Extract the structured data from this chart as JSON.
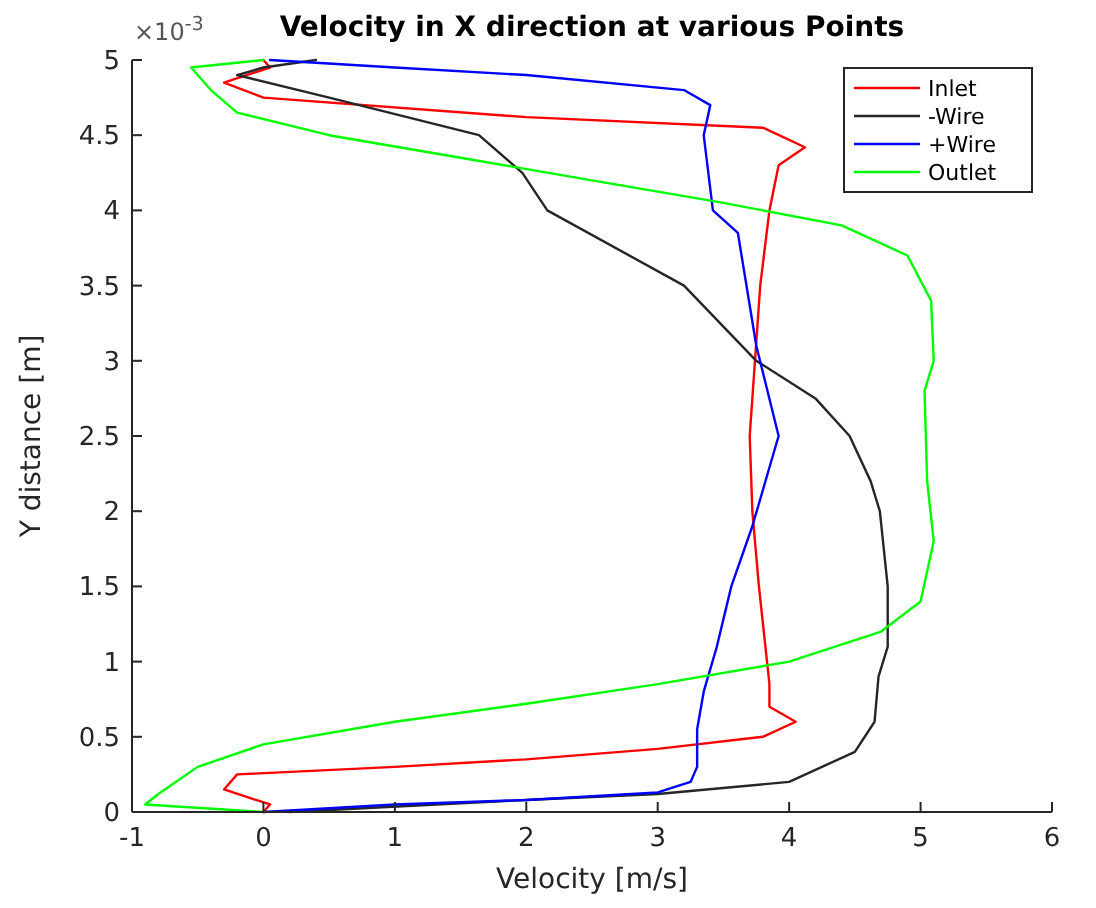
{
  "chart_data": {
    "type": "line",
    "title": "Velocity in X direction at various Points",
    "xlabel": "Velocity [m/s]",
    "ylabel": "Y distance [m]",
    "annotations": [
      "×10$^{-3}$"
    ],
    "xlim": [
      -1,
      6
    ],
    "xticks": [
      -1,
      0,
      1,
      2,
      3,
      4,
      5,
      6
    ],
    "ylim": [
      0,
      5
    ],
    "yticks": [
      0,
      0.5,
      1,
      1.5,
      2,
      2.5,
      3,
      3.5,
      4,
      4.5,
      5
    ],
    "grid": false,
    "legend": "top right",
    "line_style": "solid",
    "series": [
      {
        "name": "Inlet",
        "color": "#ff0000",
        "x": [
          0,
          0.05,
          -0.3,
          -0.2,
          1,
          2,
          3,
          3.8,
          4.05,
          3.85,
          3.85,
          3.77,
          3.72,
          3.7,
          3.74,
          3.78,
          3.85,
          3.92,
          4.12,
          3.8,
          2,
          0,
          -0.3,
          0.05,
          0
        ],
        "values": [
          0,
          0.05,
          0.15,
          0.25,
          0.3,
          0.35,
          0.42,
          0.5,
          0.6,
          0.7,
          0.85,
          1.5,
          2,
          2.5,
          3,
          3.5,
          4,
          4.3,
          4.42,
          4.55,
          4.62,
          4.75,
          4.85,
          4.95,
          5
        ]
      },
      {
        "name": "-Wire",
        "color": "#262626",
        "x": [
          0.2,
          2,
          3,
          4,
          4.5,
          4.65,
          4.68,
          4.75,
          4.75,
          4.69,
          4.62,
          4.46,
          4.2,
          3.75,
          3.2,
          2.16,
          1.97,
          1.64,
          0.5,
          -0.2,
          0,
          0.4
        ],
        "values": [
          0,
          0.08,
          0.12,
          0.2,
          0.4,
          0.6,
          0.9,
          1.1,
          1.5,
          2,
          2.2,
          2.5,
          2.75,
          3,
          3.5,
          4,
          4.25,
          4.5,
          4.75,
          4.9,
          4.95,
          5
        ]
      },
      {
        "name": "+Wire",
        "color": "#0000ff",
        "x": [
          0,
          1,
          2,
          3,
          3.25,
          3.3,
          3.3,
          3.35,
          3.45,
          3.56,
          3.72,
          3.92,
          3.75,
          3.61,
          3.42,
          3.35,
          3.4,
          3.2,
          2,
          1,
          0.05
        ],
        "values": [
          0,
          0.05,
          0.08,
          0.13,
          0.2,
          0.3,
          0.55,
          0.8,
          1.1,
          1.5,
          1.9,
          2.5,
          3.1,
          3.85,
          4,
          4.5,
          4.7,
          4.8,
          4.9,
          4.95,
          5
        ]
      },
      {
        "name": "Outlet",
        "color": "#00ff00",
        "x": [
          0,
          -0.9,
          -0.8,
          -0.5,
          0,
          1,
          2,
          3,
          4,
          4.7,
          5,
          5.05,
          5.1,
          5.05,
          5.03,
          5.1,
          5.08,
          4.9,
          4.4,
          3.5,
          2.5,
          1.5,
          0.5,
          -0.2,
          -0.4,
          -0.55,
          0
        ],
        "values": [
          0,
          0.05,
          0.12,
          0.3,
          0.45,
          0.6,
          0.72,
          0.85,
          1,
          1.2,
          1.4,
          1.6,
          1.8,
          2.2,
          2.8,
          3,
          3.4,
          3.7,
          3.9,
          4.05,
          4.2,
          4.35,
          4.5,
          4.65,
          4.8,
          4.95,
          5
        ]
      }
    ]
  }
}
